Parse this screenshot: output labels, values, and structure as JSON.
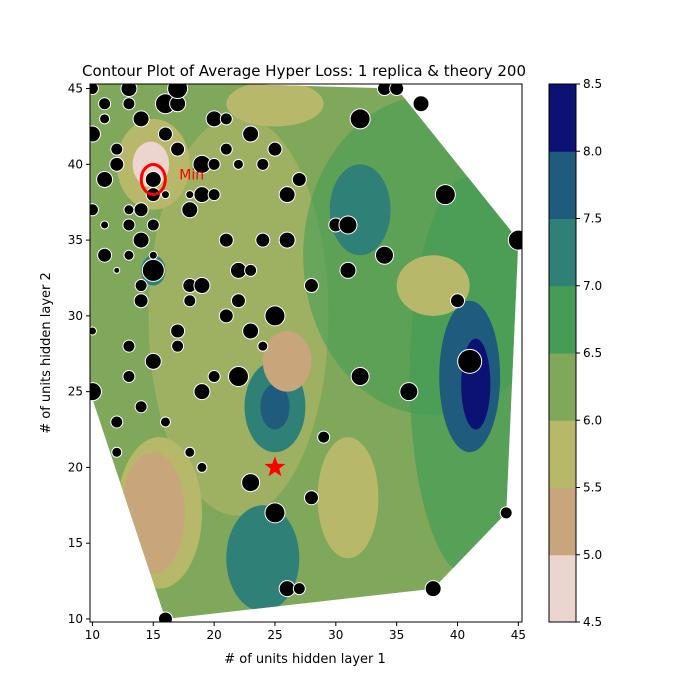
{
  "chart_data": {
    "type": "contour",
    "title": "Contour Plot of Average Hyper Loss: 1 replica & theory 200",
    "xlabel": "# of units hidden layer 1",
    "ylabel": "# of units hidden layer 2",
    "xlim": [
      9.8,
      45.3
    ],
    "ylim": [
      9.8,
      45.3
    ],
    "xticks": [
      10,
      15,
      20,
      25,
      30,
      35,
      40,
      45
    ],
    "yticks": [
      10,
      15,
      20,
      25,
      30,
      35,
      40,
      45
    ],
    "colorbar": {
      "levels": [
        4.5,
        5.0,
        5.5,
        6.0,
        6.5,
        7.0,
        7.5,
        8.0,
        8.5
      ],
      "tick_labels": [
        "4.5",
        "5.0",
        "5.5",
        "6.0",
        "6.5",
        "7.0",
        "7.5",
        "8.0",
        "8.5"
      ],
      "colors": [
        "#ecd4cf",
        "#c8a57a",
        "#b8b86a",
        "#7fa85a",
        "#469c55",
        "#2f8178",
        "#1f5b7c",
        "#0b1274"
      ]
    },
    "hull": [
      [
        16,
        10
      ],
      [
        38,
        12
      ],
      [
        44,
        17
      ],
      [
        45,
        35
      ],
      [
        35,
        45
      ],
      [
        13,
        45.5
      ],
      [
        9.8,
        45.3
      ],
      [
        9.8,
        25
      ],
      [
        16,
        10
      ]
    ],
    "blobs": [
      {
        "level": 7.5,
        "cx": 41,
        "cy": 26,
        "rx": 2.5,
        "ry": 5
      },
      {
        "level": 8.0,
        "cx": 41.5,
        "cy": 25.5,
        "rx": 1.2,
        "ry": 3
      },
      {
        "level": 7.0,
        "cx": 25,
        "cy": 24,
        "rx": 2.5,
        "ry": 3
      },
      {
        "level": 7.5,
        "cx": 25,
        "cy": 24,
        "rx": 1.2,
        "ry": 1.5
      },
      {
        "level": 7.0,
        "cx": 24,
        "cy": 14,
        "rx": 3,
        "ry": 3.5
      },
      {
        "level": 7.0,
        "cx": 32,
        "cy": 37,
        "rx": 2.5,
        "ry": 3
      },
      {
        "level": 5.5,
        "cx": 15.5,
        "cy": 17,
        "rx": 3.5,
        "ry": 5
      },
      {
        "level": 5.0,
        "cx": 15,
        "cy": 17,
        "rx": 2.6,
        "ry": 4
      },
      {
        "level": 5.5,
        "cx": 31,
        "cy": 18,
        "rx": 2.5,
        "ry": 4
      },
      {
        "level": 5.5,
        "cx": 15,
        "cy": 40,
        "rx": 3,
        "ry": 3
      },
      {
        "level": 4.5,
        "cx": 14.8,
        "cy": 40,
        "rx": 1.5,
        "ry": 1.5
      },
      {
        "level": 5.5,
        "cx": 25,
        "cy": 44,
        "rx": 4,
        "ry": 1.5
      },
      {
        "level": 5.0,
        "cx": 26,
        "cy": 27,
        "rx": 2,
        "ry": 2
      },
      {
        "level": 5.5,
        "cx": 38,
        "cy": 32,
        "rx": 3,
        "ry": 2
      },
      {
        "level": 7.0,
        "cx": 15,
        "cy": 33,
        "rx": 1,
        "ry": 1
      }
    ],
    "points": [
      {
        "x": 10,
        "y": 45,
        "s": 6
      },
      {
        "x": 11,
        "y": 44,
        "s": 6
      },
      {
        "x": 11,
        "y": 43,
        "s": 5
      },
      {
        "x": 10,
        "y": 42,
        "s": 8
      },
      {
        "x": 13,
        "y": 45,
        "s": 8
      },
      {
        "x": 13,
        "y": 44,
        "s": 6
      },
      {
        "x": 14,
        "y": 43,
        "s": 8
      },
      {
        "x": 16,
        "y": 44,
        "s": 10
      },
      {
        "x": 17,
        "y": 44,
        "s": 8
      },
      {
        "x": 17,
        "y": 45,
        "s": 10
      },
      {
        "x": 16,
        "y": 42,
        "s": 7
      },
      {
        "x": 17,
        "y": 41,
        "s": 7
      },
      {
        "x": 12,
        "y": 41,
        "s": 6
      },
      {
        "x": 12,
        "y": 40,
        "s": 7
      },
      {
        "x": 11,
        "y": 39,
        "s": 8
      },
      {
        "x": 15,
        "y": 39,
        "s": 8
      },
      {
        "x": 15,
        "y": 38,
        "s": 7
      },
      {
        "x": 16,
        "y": 38,
        "s": 4
      },
      {
        "x": 18,
        "y": 38,
        "s": 4
      },
      {
        "x": 19,
        "y": 38,
        "s": 8
      },
      {
        "x": 20,
        "y": 38,
        "s": 6
      },
      {
        "x": 19,
        "y": 40,
        "s": 9
      },
      {
        "x": 20,
        "y": 40,
        "s": 6
      },
      {
        "x": 21,
        "y": 41,
        "s": 6
      },
      {
        "x": 22,
        "y": 40,
        "s": 5
      },
      {
        "x": 20,
        "y": 43,
        "s": 8
      },
      {
        "x": 21,
        "y": 43,
        "s": 6
      },
      {
        "x": 23,
        "y": 42,
        "s": 8
      },
      {
        "x": 24,
        "y": 40,
        "s": 6
      },
      {
        "x": 25,
        "y": 41,
        "s": 7
      },
      {
        "x": 26,
        "y": 38,
        "s": 8
      },
      {
        "x": 27,
        "y": 39,
        "s": 7
      },
      {
        "x": 18,
        "y": 37,
        "s": 8
      },
      {
        "x": 13,
        "y": 37,
        "s": 5
      },
      {
        "x": 14,
        "y": 37,
        "s": 7
      },
      {
        "x": 10,
        "y": 37,
        "s": 6
      },
      {
        "x": 11,
        "y": 36,
        "s": 4
      },
      {
        "x": 13,
        "y": 36,
        "s": 6
      },
      {
        "x": 15,
        "y": 36,
        "s": 6
      },
      {
        "x": 14,
        "y": 35,
        "s": 8
      },
      {
        "x": 21,
        "y": 35,
        "s": 7
      },
      {
        "x": 24,
        "y": 35,
        "s": 7
      },
      {
        "x": 26,
        "y": 35,
        "s": 8
      },
      {
        "x": 30,
        "y": 36,
        "s": 7
      },
      {
        "x": 31,
        "y": 36,
        "s": 9
      },
      {
        "x": 34,
        "y": 34,
        "s": 9
      },
      {
        "x": 39,
        "y": 38,
        "s": 10
      },
      {
        "x": 45,
        "y": 35,
        "s": 10
      },
      {
        "x": 11,
        "y": 34,
        "s": 7
      },
      {
        "x": 13,
        "y": 34,
        "s": 5
      },
      {
        "x": 15,
        "y": 34,
        "s": 4
      },
      {
        "x": 12,
        "y": 33,
        "s": 3
      },
      {
        "x": 15,
        "y": 33,
        "s": 11
      },
      {
        "x": 22,
        "y": 33,
        "s": 8
      },
      {
        "x": 23,
        "y": 33,
        "s": 6
      },
      {
        "x": 31,
        "y": 33,
        "s": 8
      },
      {
        "x": 14,
        "y": 32,
        "s": 6
      },
      {
        "x": 18,
        "y": 32,
        "s": 7
      },
      {
        "x": 19,
        "y": 32,
        "s": 8
      },
      {
        "x": 28,
        "y": 32,
        "s": 7
      },
      {
        "x": 14,
        "y": 31,
        "s": 7
      },
      {
        "x": 18,
        "y": 31,
        "s": 6
      },
      {
        "x": 22,
        "y": 31,
        "s": 7
      },
      {
        "x": 40,
        "y": 31,
        "s": 7
      },
      {
        "x": 21,
        "y": 30,
        "s": 7
      },
      {
        "x": 25,
        "y": 30,
        "s": 10
      },
      {
        "x": 10,
        "y": 29,
        "s": 4
      },
      {
        "x": 17,
        "y": 29,
        "s": 7
      },
      {
        "x": 23,
        "y": 29,
        "s": 8
      },
      {
        "x": 13,
        "y": 28,
        "s": 6
      },
      {
        "x": 17,
        "y": 28,
        "s": 6
      },
      {
        "x": 24,
        "y": 28,
        "s": 5
      },
      {
        "x": 15,
        "y": 27,
        "s": 8
      },
      {
        "x": 41,
        "y": 27,
        "s": 12
      },
      {
        "x": 13,
        "y": 26,
        "s": 6
      },
      {
        "x": 20,
        "y": 26,
        "s": 6
      },
      {
        "x": 22,
        "y": 26,
        "s": 10
      },
      {
        "x": 32,
        "y": 26,
        "s": 9
      },
      {
        "x": 10,
        "y": 25,
        "s": 9
      },
      {
        "x": 19,
        "y": 25,
        "s": 8
      },
      {
        "x": 36,
        "y": 25,
        "s": 9
      },
      {
        "x": 14,
        "y": 24,
        "s": 6
      },
      {
        "x": 12,
        "y": 23,
        "s": 6
      },
      {
        "x": 16,
        "y": 23,
        "s": 5
      },
      {
        "x": 29,
        "y": 22,
        "s": 6
      },
      {
        "x": 12,
        "y": 21,
        "s": 5
      },
      {
        "x": 18,
        "y": 21,
        "s": 5
      },
      {
        "x": 19,
        "y": 20,
        "s": 5
      },
      {
        "x": 23,
        "y": 19,
        "s": 9
      },
      {
        "x": 28,
        "y": 18,
        "s": 7
      },
      {
        "x": 25,
        "y": 17,
        "s": 10
      },
      {
        "x": 44,
        "y": 17,
        "s": 6
      },
      {
        "x": 26,
        "y": 12,
        "s": 8
      },
      {
        "x": 27,
        "y": 12,
        "s": 6
      },
      {
        "x": 38,
        "y": 12,
        "s": 8
      },
      {
        "x": 16,
        "y": 10,
        "s": 7
      },
      {
        "x": 32,
        "y": 43,
        "s": 10
      },
      {
        "x": 34,
        "y": 45,
        "s": 7
      },
      {
        "x": 35,
        "y": 45,
        "s": 7
      },
      {
        "x": 37,
        "y": 44,
        "s": 8
      }
    ],
    "star": {
      "x": 25,
      "y": 20
    },
    "min_marker": {
      "x": 15,
      "y": 39,
      "label": "Min"
    }
  }
}
